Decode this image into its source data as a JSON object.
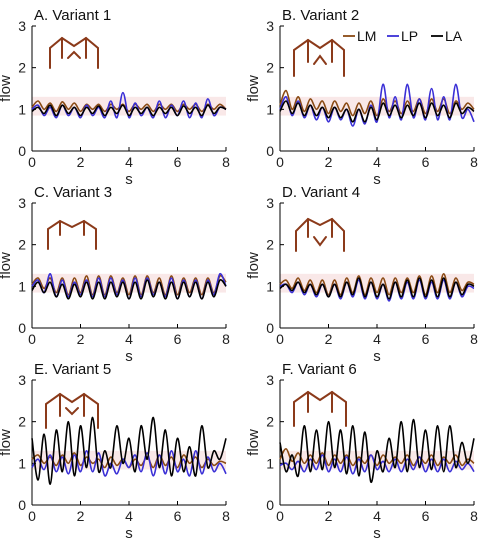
{
  "colors": {
    "LM": "#8a4a14",
    "LP": "#3a2fd6",
    "LA": "#000000",
    "band": "#f6dede",
    "vessel": "#8b3a1a"
  },
  "legend": [
    {
      "key": "LM",
      "label": "LM",
      "color": "#8a4a14"
    },
    {
      "key": "LP",
      "label": "LP",
      "color": "#3a2fd6"
    },
    {
      "key": "LA",
      "label": "LA",
      "color": "#000000"
    }
  ],
  "chart_data": [
    {
      "type": "line",
      "title": "A. Variant 1",
      "xlabel": "s",
      "ylabel": "flow",
      "xlim": [
        0,
        8
      ],
      "ylim": [
        0,
        3
      ],
      "xticks": [
        "0",
        "2",
        "4",
        "6",
        "8"
      ],
      "yticks": [
        "0",
        "1",
        "2",
        "3"
      ],
      "x": [
        0,
        0.25,
        0.5,
        0.75,
        1,
        1.25,
        1.5,
        1.75,
        2,
        2.25,
        2.5,
        2.75,
        3,
        3.25,
        3.5,
        3.75,
        4,
        4.25,
        4.5,
        4.75,
        5,
        5.25,
        5.5,
        5.75,
        6,
        6.25,
        6.5,
        6.75,
        7,
        7.25,
        7.5,
        7.75,
        8
      ],
      "series": [
        {
          "name": "LM",
          "values": [
            1.05,
            1.2,
            1.0,
            1.15,
            0.95,
            1.18,
            1.0,
            1.15,
            0.95,
            1.12,
            1.0,
            1.12,
            0.95,
            1.12,
            1.0,
            1.12,
            0.95,
            1.12,
            1.0,
            1.12,
            0.95,
            1.12,
            1.0,
            1.12,
            0.95,
            1.12,
            1.0,
            1.12,
            0.95,
            1.12,
            1.0,
            1.12,
            1.0
          ]
        },
        {
          "name": "LP",
          "values": [
            1.0,
            1.1,
            0.85,
            1.05,
            0.8,
            1.1,
            0.85,
            1.05,
            0.8,
            1.1,
            0.85,
            1.05,
            0.8,
            1.2,
            0.8,
            1.4,
            0.8,
            1.15,
            0.85,
            1.05,
            0.8,
            1.2,
            0.8,
            1.1,
            0.85,
            1.2,
            0.8,
            1.15,
            0.8,
            1.25,
            0.85,
            1.05,
            1.0
          ]
        },
        {
          "name": "LA",
          "values": [
            0.95,
            1.05,
            0.9,
            1.1,
            0.85,
            1.1,
            0.9,
            1.05,
            0.85,
            1.05,
            0.9,
            1.08,
            0.85,
            1.05,
            0.9,
            1.1,
            0.85,
            1.05,
            0.9,
            1.05,
            0.85,
            1.05,
            0.9,
            1.05,
            0.85,
            1.08,
            0.9,
            1.05,
            0.85,
            1.1,
            0.9,
            1.05,
            1.0
          ]
        }
      ]
    },
    {
      "type": "line",
      "title": "B. Variant 2",
      "xlabel": "s",
      "ylabel": "flow",
      "xlim": [
        0,
        8
      ],
      "ylim": [
        0,
        3
      ],
      "xticks": [
        "0",
        "2",
        "4",
        "6",
        "8"
      ],
      "yticks": [
        "0",
        "1",
        "2",
        "3"
      ],
      "x": [
        0,
        0.25,
        0.5,
        0.75,
        1,
        1.25,
        1.5,
        1.75,
        2,
        2.25,
        2.5,
        2.75,
        3,
        3.25,
        3.5,
        3.75,
        4,
        4.25,
        4.5,
        4.75,
        5,
        5.25,
        5.5,
        5.75,
        6,
        6.25,
        6.5,
        6.75,
        7,
        7.25,
        7.5,
        7.75,
        8
      ],
      "series": [
        {
          "name": "LM",
          "values": [
            1.1,
            1.45,
            1.0,
            1.3,
            0.95,
            1.25,
            1.0,
            1.2,
            0.9,
            1.2,
            0.95,
            1.15,
            0.85,
            1.15,
            0.9,
            1.2,
            0.85,
            1.25,
            0.95,
            1.2,
            0.9,
            1.2,
            0.95,
            1.25,
            0.9,
            1.25,
            0.95,
            1.25,
            0.9,
            1.2,
            1.0,
            1.15,
            1.0
          ]
        },
        {
          "name": "LP",
          "values": [
            1.0,
            1.3,
            0.85,
            1.2,
            0.8,
            1.1,
            0.75,
            1.05,
            0.7,
            1.05,
            0.75,
            1.0,
            0.6,
            1.0,
            0.65,
            1.1,
            0.7,
            1.6,
            0.8,
            1.3,
            0.75,
            1.6,
            0.8,
            1.25,
            0.75,
            1.5,
            0.75,
            1.3,
            0.75,
            1.6,
            0.8,
            1.0,
            0.7
          ]
        },
        {
          "name": "LA",
          "values": [
            0.95,
            1.2,
            0.9,
            1.15,
            0.85,
            1.1,
            0.85,
            1.05,
            0.8,
            1.05,
            0.8,
            1.0,
            0.7,
            1.0,
            0.7,
            1.05,
            0.75,
            1.15,
            0.85,
            1.1,
            0.8,
            1.1,
            0.85,
            1.15,
            0.8,
            1.15,
            0.85,
            1.1,
            0.8,
            1.15,
            0.9,
            1.05,
            0.95
          ]
        }
      ]
    },
    {
      "type": "line",
      "title": "C. Variant 3",
      "xlabel": "s",
      "ylabel": "flow",
      "xlim": [
        0,
        8
      ],
      "ylim": [
        0,
        3
      ],
      "xticks": [
        "0",
        "2",
        "4",
        "6",
        "8"
      ],
      "yticks": [
        "0",
        "1",
        "2",
        "3"
      ],
      "x": [
        0,
        0.25,
        0.5,
        0.75,
        1,
        1.25,
        1.5,
        1.75,
        2,
        2.25,
        2.5,
        2.75,
        3,
        3.25,
        3.5,
        3.75,
        4,
        4.25,
        4.5,
        4.75,
        5,
        5.25,
        5.5,
        5.75,
        6,
        6.25,
        6.5,
        6.75,
        7,
        7.25,
        7.5,
        7.75,
        8
      ],
      "series": [
        {
          "name": "LM",
          "values": [
            1.05,
            1.2,
            0.95,
            1.2,
            0.85,
            1.2,
            0.8,
            1.2,
            0.85,
            1.25,
            0.8,
            1.25,
            0.8,
            1.25,
            0.85,
            1.2,
            0.8,
            1.25,
            0.8,
            1.25,
            0.85,
            1.2,
            0.8,
            1.25,
            0.8,
            1.2,
            0.85,
            1.2,
            0.8,
            1.2,
            0.85,
            1.25,
            1.1
          ]
        },
        {
          "name": "LP",
          "values": [
            1.0,
            1.15,
            0.85,
            1.3,
            0.75,
            1.15,
            0.75,
            1.1,
            0.8,
            1.15,
            0.75,
            1.2,
            0.75,
            1.2,
            0.8,
            1.15,
            0.7,
            1.2,
            0.75,
            1.2,
            0.8,
            1.1,
            0.75,
            1.2,
            0.7,
            1.15,
            0.75,
            1.15,
            0.7,
            1.15,
            0.8,
            1.3,
            1.0
          ]
        },
        {
          "name": "LA",
          "values": [
            0.9,
            1.1,
            0.85,
            1.1,
            0.75,
            1.05,
            0.7,
            1.05,
            0.75,
            1.1,
            0.7,
            1.1,
            0.7,
            1.1,
            0.75,
            1.1,
            0.7,
            1.1,
            0.7,
            1.15,
            0.75,
            1.1,
            0.7,
            1.1,
            0.7,
            1.1,
            0.75,
            1.1,
            0.7,
            1.1,
            0.75,
            1.15,
            1.0
          ]
        }
      ]
    },
    {
      "type": "line",
      "title": "D. Variant 4",
      "xlabel": "s",
      "ylabel": "flow",
      "xlim": [
        0,
        8
      ],
      "ylim": [
        0,
        3
      ],
      "xticks": [
        "0",
        "2",
        "4",
        "6",
        "8"
      ],
      "yticks": [
        "0",
        "1",
        "2",
        "3"
      ],
      "x": [
        0,
        0.25,
        0.5,
        0.75,
        1,
        1.25,
        1.5,
        1.75,
        2,
        2.25,
        2.5,
        2.75,
        3,
        3.25,
        3.5,
        3.75,
        4,
        4.25,
        4.5,
        4.75,
        5,
        5.25,
        5.5,
        5.75,
        6,
        6.25,
        6.5,
        6.75,
        7,
        7.25,
        7.5,
        7.75,
        8
      ],
      "series": [
        {
          "name": "LM",
          "values": [
            1.05,
            1.15,
            0.95,
            1.2,
            0.9,
            1.15,
            0.85,
            1.15,
            0.8,
            1.15,
            0.8,
            1.2,
            0.85,
            1.25,
            0.8,
            1.2,
            0.85,
            1.2,
            0.8,
            1.2,
            0.85,
            1.2,
            0.85,
            1.25,
            0.8,
            1.25,
            0.85,
            1.3,
            0.85,
            1.2,
            0.9,
            1.1,
            1.05
          ]
        },
        {
          "name": "LP",
          "values": [
            1.0,
            1.05,
            0.85,
            1.1,
            0.8,
            1.05,
            0.75,
            1.05,
            0.75,
            1.05,
            0.7,
            1.1,
            0.75,
            1.15,
            0.7,
            1.1,
            0.7,
            1.05,
            0.65,
            1.1,
            0.7,
            1.1,
            0.7,
            1.15,
            0.7,
            1.1,
            0.7,
            1.15,
            0.7,
            1.1,
            0.75,
            1.0,
            0.95
          ]
        },
        {
          "name": "LA",
          "values": [
            0.95,
            1.05,
            0.9,
            1.1,
            0.85,
            1.05,
            0.8,
            1.05,
            0.75,
            1.05,
            0.75,
            1.1,
            0.8,
            1.2,
            0.75,
            1.1,
            0.75,
            1.05,
            0.7,
            1.1,
            0.75,
            1.15,
            0.75,
            1.2,
            0.75,
            1.15,
            0.75,
            1.2,
            0.75,
            1.1,
            0.8,
            1.05,
            1.0
          ]
        }
      ]
    },
    {
      "type": "line",
      "title": "E. Variant 5",
      "xlabel": "s",
      "ylabel": "flow",
      "xlim": [
        0,
        8
      ],
      "ylim": [
        0,
        3
      ],
      "xticks": [
        "0",
        "2",
        "4",
        "6",
        "8"
      ],
      "yticks": [
        "0",
        "1",
        "2",
        "3"
      ],
      "x": [
        0,
        0.25,
        0.5,
        0.75,
        1,
        1.25,
        1.5,
        1.75,
        2,
        2.25,
        2.5,
        2.75,
        3,
        3.25,
        3.5,
        3.75,
        4,
        4.25,
        4.5,
        4.75,
        5,
        5.25,
        5.5,
        5.75,
        6,
        6.25,
        6.5,
        6.75,
        7,
        7.25,
        7.5,
        7.75,
        8
      ],
      "series": [
        {
          "name": "LM",
          "values": [
            1.1,
            1.2,
            1.0,
            1.15,
            0.95,
            1.2,
            1.0,
            1.25,
            0.95,
            1.15,
            1.0,
            1.1,
            0.9,
            1.15,
            0.95,
            1.1,
            0.9,
            1.1,
            0.95,
            1.15,
            0.9,
            1.2,
            0.95,
            1.15,
            0.9,
            1.2,
            1.0,
            1.15,
            0.9,
            1.1,
            0.95,
            1.05,
            1.0
          ]
        },
        {
          "name": "LP",
          "values": [
            0.9,
            1.1,
            0.85,
            1.2,
            0.8,
            1.15,
            0.75,
            1.2,
            0.8,
            1.3,
            0.8,
            1.25,
            0.7,
            1.0,
            0.75,
            1.1,
            0.9,
            1.2,
            0.8,
            1.25,
            0.7,
            1.2,
            0.75,
            1.3,
            0.8,
            1.1,
            0.7,
            1.3,
            0.75,
            1.15,
            0.8,
            1.0,
            0.75
          ]
        },
        {
          "name": "LA",
          "values": [
            1.6,
            0.6,
            1.7,
            0.5,
            1.8,
            0.8,
            2.0,
            0.7,
            1.9,
            0.9,
            2.1,
            0.8,
            1.3,
            0.9,
            1.9,
            1.0,
            1.6,
            0.8,
            1.9,
            1.1,
            2.1,
            0.9,
            1.8,
            0.7,
            1.6,
            0.8,
            1.4,
            0.7,
            1.9,
            0.9,
            1.3,
            1.1,
            1.6
          ]
        }
      ]
    },
    {
      "type": "line",
      "title": "F. Variant 6",
      "xlabel": "s",
      "ylabel": "flow",
      "xlim": [
        0,
        8
      ],
      "ylim": [
        0,
        3
      ],
      "xticks": [
        "0",
        "2",
        "4",
        "6",
        "8"
      ],
      "yticks": [
        "0",
        "1",
        "2",
        "3"
      ],
      "x": [
        0,
        0.25,
        0.5,
        0.75,
        1,
        1.25,
        1.5,
        1.75,
        2,
        2.25,
        2.5,
        2.75,
        3,
        3.25,
        3.5,
        3.75,
        4,
        4.25,
        4.5,
        4.75,
        5,
        5.25,
        5.5,
        5.75,
        6,
        6.25,
        6.5,
        6.75,
        7,
        7.25,
        7.5,
        7.75,
        8
      ],
      "series": [
        {
          "name": "LM",
          "values": [
            1.1,
            1.35,
            1.05,
            1.25,
            1.0,
            1.2,
            1.0,
            1.25,
            0.95,
            1.2,
            1.0,
            1.2,
            0.95,
            1.15,
            1.0,
            1.2,
            0.95,
            1.2,
            1.0,
            1.15,
            1.0,
            1.2,
            0.95,
            1.15,
            1.0,
            1.2,
            0.95,
            1.15,
            1.0,
            1.2,
            0.95,
            1.1,
            1.0
          ]
        },
        {
          "name": "LP",
          "values": [
            0.95,
            1.0,
            0.85,
            1.05,
            0.8,
            1.1,
            0.85,
            1.2,
            0.8,
            1.1,
            0.8,
            1.15,
            0.75,
            1.1,
            0.8,
            1.2,
            0.85,
            1.05,
            0.8,
            1.1,
            0.8,
            1.1,
            0.85,
            1.15,
            0.8,
            1.1,
            0.8,
            1.1,
            0.8,
            1.05,
            0.85,
            1.0,
            0.8
          ]
        },
        {
          "name": "LA",
          "values": [
            1.5,
            0.8,
            1.2,
            0.7,
            1.9,
            0.8,
            1.8,
            0.85,
            2.0,
            0.9,
            1.8,
            0.75,
            1.9,
            0.7,
            1.75,
            0.55,
            1.3,
            0.8,
            1.6,
            0.9,
            2.0,
            0.8,
            2.05,
            0.9,
            1.8,
            0.85,
            1.9,
            0.8,
            1.9,
            0.9,
            1.5,
            1.0,
            1.6
          ]
        }
      ]
    }
  ]
}
